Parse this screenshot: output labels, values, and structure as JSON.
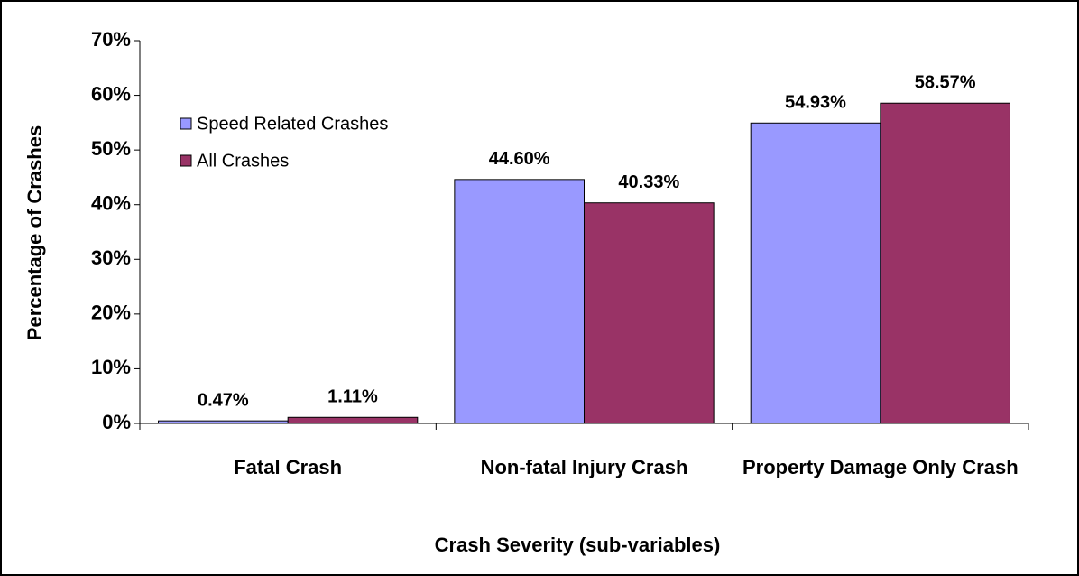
{
  "chart_data": {
    "type": "bar",
    "ylabel": "Percentage of Crashes",
    "xlabel": "Crash Severity (sub-variables)",
    "categories": [
      "Fatal Crash",
      "Non-fatal Injury Crash",
      "Property Damage Only Crash"
    ],
    "series": [
      {
        "name": "Speed Related Crashes",
        "color": "#9999ff",
        "values": [
          0.47,
          44.6,
          54.93
        ],
        "value_labels": [
          "0.47%",
          "44.60%",
          "54.93%"
        ]
      },
      {
        "name": "All Crashes",
        "color": "#993366",
        "values": [
          1.11,
          40.33,
          58.57
        ],
        "value_labels": [
          "1.11%",
          "40.33%",
          "58.57%"
        ]
      }
    ],
    "ylim": [
      0,
      70
    ],
    "yticks": [
      {
        "value": 0,
        "label": "0%"
      },
      {
        "value": 10,
        "label": "10%"
      },
      {
        "value": 20,
        "label": "20%"
      },
      {
        "value": 30,
        "label": "30%"
      },
      {
        "value": 40,
        "label": "40%"
      },
      {
        "value": 50,
        "label": "50%"
      },
      {
        "value": 60,
        "label": "60%"
      },
      {
        "value": 70,
        "label": "70%"
      }
    ],
    "legend": "upper left",
    "grid": false
  }
}
